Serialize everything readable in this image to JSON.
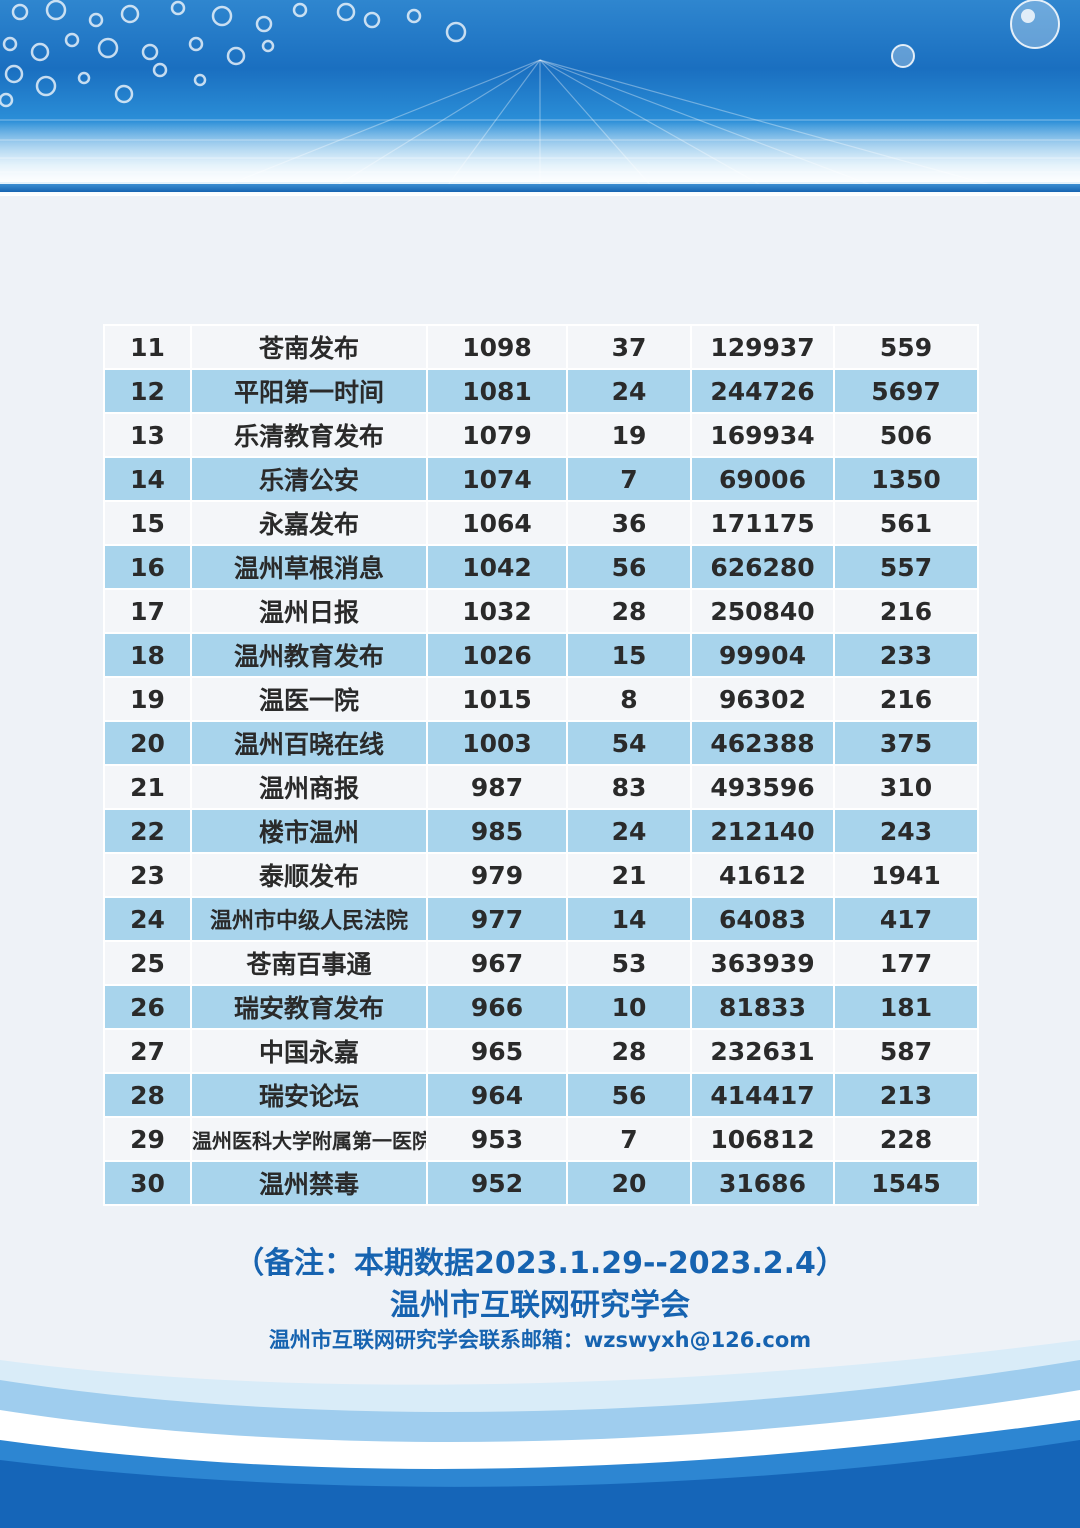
{
  "table": {
    "rows": [
      {
        "rank": "11",
        "name": "苍南发布",
        "c1": "1098",
        "c2": "37",
        "c3": "129937",
        "c4": "559"
      },
      {
        "rank": "12",
        "name": "平阳第一时间",
        "c1": "1081",
        "c2": "24",
        "c3": "244726",
        "c4": "5697"
      },
      {
        "rank": "13",
        "name": "乐清教育发布",
        "c1": "1079",
        "c2": "19",
        "c3": "169934",
        "c4": "506"
      },
      {
        "rank": "14",
        "name": "乐清公安",
        "c1": "1074",
        "c2": "7",
        "c3": "69006",
        "c4": "1350"
      },
      {
        "rank": "15",
        "name": "永嘉发布",
        "c1": "1064",
        "c2": "36",
        "c3": "171175",
        "c4": "561"
      },
      {
        "rank": "16",
        "name": "温州草根消息",
        "c1": "1042",
        "c2": "56",
        "c3": "626280",
        "c4": "557"
      },
      {
        "rank": "17",
        "name": "温州日报",
        "c1": "1032",
        "c2": "28",
        "c3": "250840",
        "c4": "216"
      },
      {
        "rank": "18",
        "name": "温州教育发布",
        "c1": "1026",
        "c2": "15",
        "c3": "99904",
        "c4": "233"
      },
      {
        "rank": "19",
        "name": "温医一院",
        "c1": "1015",
        "c2": "8",
        "c3": "96302",
        "c4": "216"
      },
      {
        "rank": "20",
        "name": "温州百晓在线",
        "c1": "1003",
        "c2": "54",
        "c3": "462388",
        "c4": "375"
      },
      {
        "rank": "21",
        "name": "温州商报",
        "c1": "987",
        "c2": "83",
        "c3": "493596",
        "c4": "310"
      },
      {
        "rank": "22",
        "name": "楼市温州",
        "c1": "985",
        "c2": "24",
        "c3": "212140",
        "c4": "243"
      },
      {
        "rank": "23",
        "name": "泰顺发布",
        "c1": "979",
        "c2": "21",
        "c3": "41612",
        "c4": "1941"
      },
      {
        "rank": "24",
        "name": "温州市中级人民法院",
        "c1": "977",
        "c2": "14",
        "c3": "64083",
        "c4": "417"
      },
      {
        "rank": "25",
        "name": "苍南百事通",
        "c1": "967",
        "c2": "53",
        "c3": "363939",
        "c4": "177"
      },
      {
        "rank": "26",
        "name": "瑞安教育发布",
        "c1": "966",
        "c2": "10",
        "c3": "81833",
        "c4": "181"
      },
      {
        "rank": "27",
        "name": "中国永嘉",
        "c1": "965",
        "c2": "28",
        "c3": "232631",
        "c4": "587"
      },
      {
        "rank": "28",
        "name": "瑞安论坛",
        "c1": "964",
        "c2": "56",
        "c3": "414417",
        "c4": "213"
      },
      {
        "rank": "29",
        "name": "温州医科大学附属第一医院",
        "c1": "953",
        "c2": "7",
        "c3": "106812",
        "c4": "228"
      },
      {
        "rank": "30",
        "name": "温州禁毒",
        "c1": "952",
        "c2": "20",
        "c3": "31686",
        "c4": "1545"
      }
    ]
  },
  "footer": {
    "note": "（备注：本期数据2023.1.29--2023.2.4）",
    "org": "温州市互联网研究学会",
    "contact": "温州市互联网研究学会联系邮箱：wzswyxh@126.com"
  },
  "colors": {
    "row_odd": "#f4f6f9",
    "row_even": "#a8d4ec",
    "footer_text": "#1663b0",
    "banner_blue": "#1a6fc0"
  }
}
